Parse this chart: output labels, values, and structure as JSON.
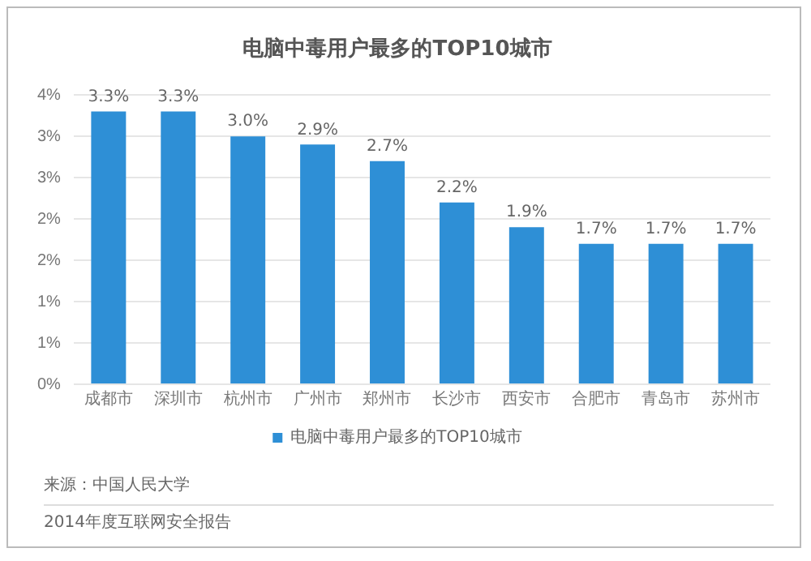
{
  "chart_data": {
    "type": "bar",
    "title": "电脑中毒用户最多的TOP10城市",
    "categories": [
      "成都市",
      "深圳市",
      "杭州市",
      "广州市",
      "郑州市",
      "长沙市",
      "西安市",
      "合肥市",
      "青岛市",
      "苏州市"
    ],
    "series": [
      {
        "name": "电脑中毒用户最多的TOP10城市",
        "color": "#2e8fd6",
        "values": [
          3.3,
          3.3,
          3.0,
          2.9,
          2.7,
          2.2,
          1.9,
          1.7,
          1.7,
          1.7
        ],
        "value_labels": [
          "3.3%",
          "3.3%",
          "3.0%",
          "2.9%",
          "2.7%",
          "2.2%",
          "1.9%",
          "1.7%",
          "1.7%",
          "1.7%"
        ]
      }
    ],
    "ylim": [
      0,
      3.5
    ],
    "yticks": [
      {
        "value": 0,
        "label": "0%"
      },
      {
        "value": 0.5,
        "label": "1%"
      },
      {
        "value": 1,
        "label": "1%"
      },
      {
        "value": 1.5,
        "label": "2%"
      },
      {
        "value": 2,
        "label": "2%"
      },
      {
        "value": 2.5,
        "label": "3%"
      },
      {
        "value": 3,
        "label": "3%"
      },
      {
        "value": 3.5,
        "label": "4%"
      }
    ],
    "grid": "y",
    "legend": "bottom",
    "annotations": [
      "来源：中国人民大学",
      "2014年度互联网安全报告"
    ]
  }
}
